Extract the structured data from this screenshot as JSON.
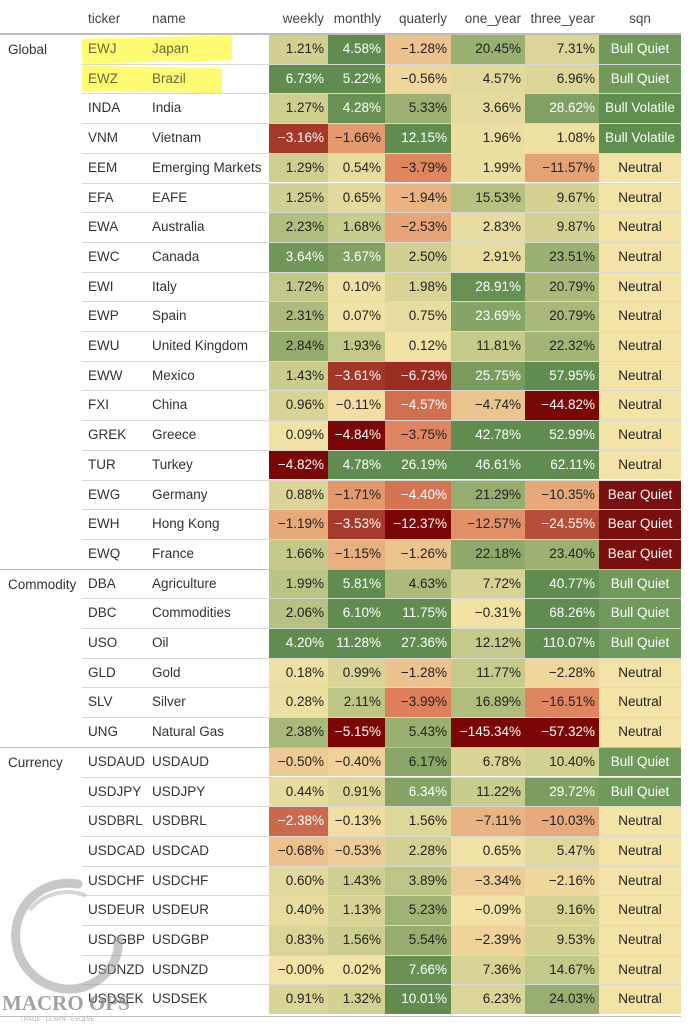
{
  "chart_data": {
    "type": "table",
    "columns": [
      {
        "key": "ticker",
        "label": "ticker"
      },
      {
        "key": "name",
        "label": "name"
      },
      {
        "key": "weekly",
        "label": "weekly"
      },
      {
        "key": "monthly",
        "label": "monthly"
      },
      {
        "key": "quaterly",
        "label": "quaterly"
      },
      {
        "key": "one_year",
        "label": "one_year"
      },
      {
        "key": "three_year",
        "label": "three_year"
      },
      {
        "key": "sqn",
        "label": "sqn"
      }
    ],
    "groups": [
      {
        "label": "Global",
        "rows": [
          {
            "ticker": "EWJ",
            "name": "Japan",
            "weekly": "1.21%",
            "monthly": "4.58%",
            "quaterly": "−1.28%",
            "one_year": "20.45%",
            "three_year": "7.31%",
            "sqn": "Bull Quiet",
            "highlighted": true
          },
          {
            "ticker": "EWZ",
            "name": "Brazil",
            "weekly": "6.73%",
            "monthly": "5.22%",
            "quaterly": "−0.56%",
            "one_year": "4.57%",
            "three_year": "6.96%",
            "sqn": "Bull Quiet",
            "highlighted": true
          },
          {
            "ticker": "INDA",
            "name": "India",
            "weekly": "1.27%",
            "monthly": "4.28%",
            "quaterly": "5.33%",
            "one_year": "3.66%",
            "three_year": "28.62%",
            "sqn": "Bull Volatile"
          },
          {
            "ticker": "VNM",
            "name": "Vietnam",
            "weekly": "−3.16%",
            "monthly": "−1.66%",
            "quaterly": "12.15%",
            "one_year": "1.96%",
            "three_year": "1.08%",
            "sqn": "Bull Volatile"
          },
          {
            "ticker": "EEM",
            "name": "Emerging Markets",
            "weekly": "1.29%",
            "monthly": "0.54%",
            "quaterly": "−3.79%",
            "one_year": "1.99%",
            "three_year": "−11.57%",
            "sqn": "Neutral"
          },
          {
            "ticker": "EFA",
            "name": "EAFE",
            "weekly": "1.25%",
            "monthly": "0.65%",
            "quaterly": "−1.94%",
            "one_year": "15.53%",
            "three_year": "9.67%",
            "sqn": "Neutral"
          },
          {
            "ticker": "EWA",
            "name": "Australia",
            "weekly": "2.23%",
            "monthly": "1.68%",
            "quaterly": "−2.53%",
            "one_year": "2.83%",
            "three_year": "9.87%",
            "sqn": "Neutral"
          },
          {
            "ticker": "EWC",
            "name": "Canada",
            "weekly": "3.64%",
            "monthly": "3.67%",
            "quaterly": "2.50%",
            "one_year": "2.91%",
            "three_year": "23.51%",
            "sqn": "Neutral"
          },
          {
            "ticker": "EWI",
            "name": "Italy",
            "weekly": "1.72%",
            "monthly": "0.10%",
            "quaterly": "1.98%",
            "one_year": "28.91%",
            "three_year": "20.79%",
            "sqn": "Neutral"
          },
          {
            "ticker": "EWP",
            "name": "Spain",
            "weekly": "2.31%",
            "monthly": "0.07%",
            "quaterly": "0.75%",
            "one_year": "23.69%",
            "three_year": "20.79%",
            "sqn": "Neutral"
          },
          {
            "ticker": "EWU",
            "name": "United Kingdom",
            "weekly": "2.84%",
            "monthly": "1.93%",
            "quaterly": "0.12%",
            "one_year": "11.81%",
            "three_year": "22.32%",
            "sqn": "Neutral"
          },
          {
            "ticker": "EWW",
            "name": "Mexico",
            "weekly": "1.43%",
            "monthly": "−3.61%",
            "quaterly": "−6.73%",
            "one_year": "25.75%",
            "three_year": "57.95%",
            "sqn": "Neutral"
          },
          {
            "ticker": "FXI",
            "name": "China",
            "weekly": "0.96%",
            "monthly": "−0.11%",
            "quaterly": "−4.57%",
            "one_year": "−4.74%",
            "three_year": "−44.82%",
            "sqn": "Neutral"
          },
          {
            "ticker": "GREK",
            "name": "Greece",
            "weekly": "0.09%",
            "monthly": "−4.84%",
            "quaterly": "−3.75%",
            "one_year": "42.78%",
            "three_year": "52.99%",
            "sqn": "Neutral"
          },
          {
            "ticker": "TUR",
            "name": "Turkey",
            "weekly": "−4.82%",
            "monthly": "4.78%",
            "quaterly": "26.19%",
            "one_year": "46.61%",
            "three_year": "62.11%",
            "sqn": "Neutral"
          },
          {
            "ticker": "EWG",
            "name": "Germany",
            "weekly": "0.88%",
            "monthly": "−1.71%",
            "quaterly": "−4.40%",
            "one_year": "21.29%",
            "three_year": "−10.35%",
            "sqn": "Bear Quiet"
          },
          {
            "ticker": "EWH",
            "name": "Hong Kong",
            "weekly": "−1.19%",
            "monthly": "−3.53%",
            "quaterly": "−12.37%",
            "one_year": "−12.57%",
            "three_year": "−24.55%",
            "sqn": "Bear Quiet"
          },
          {
            "ticker": "EWQ",
            "name": "France",
            "weekly": "1.66%",
            "monthly": "−1.15%",
            "quaterly": "−1.26%",
            "one_year": "22.18%",
            "three_year": "23.40%",
            "sqn": "Bear Quiet"
          }
        ]
      },
      {
        "label": "Commodity",
        "rows": [
          {
            "ticker": "DBA",
            "name": "Agriculture",
            "weekly": "1.99%",
            "monthly": "5.81%",
            "quaterly": "4.63%",
            "one_year": "7.72%",
            "three_year": "40.77%",
            "sqn": "Bull Quiet"
          },
          {
            "ticker": "DBC",
            "name": "Commodities",
            "weekly": "2.06%",
            "monthly": "6.10%",
            "quaterly": "11.75%",
            "one_year": "−0.31%",
            "three_year": "68.26%",
            "sqn": "Bull Quiet"
          },
          {
            "ticker": "USO",
            "name": "Oil",
            "weekly": "4.20%",
            "monthly": "11.28%",
            "quaterly": "27.36%",
            "one_year": "12.12%",
            "three_year": "110.07%",
            "sqn": "Bull Quiet"
          },
          {
            "ticker": "GLD",
            "name": "Gold",
            "weekly": "0.18%",
            "monthly": "0.99%",
            "quaterly": "−1.28%",
            "one_year": "11.77%",
            "three_year": "−2.28%",
            "sqn": "Neutral"
          },
          {
            "ticker": "SLV",
            "name": "Silver",
            "weekly": "0.28%",
            "monthly": "2.11%",
            "quaterly": "−3.99%",
            "one_year": "16.89%",
            "three_year": "−16.51%",
            "sqn": "Neutral"
          },
          {
            "ticker": "UNG",
            "name": "Natural Gas",
            "weekly": "2.38%",
            "monthly": "−5.15%",
            "quaterly": "5.43%",
            "one_year": "−145.34%",
            "three_year": "−57.32%",
            "sqn": "Neutral"
          }
        ]
      },
      {
        "label": "Currency",
        "rows": [
          {
            "ticker": "USDAUD",
            "name": "USDAUD",
            "weekly": "−0.50%",
            "monthly": "−0.40%",
            "quaterly": "6.17%",
            "one_year": "6.78%",
            "three_year": "10.40%",
            "sqn": "Bull Quiet"
          },
          {
            "ticker": "USDJPY",
            "name": "USDJPY",
            "weekly": "0.44%",
            "monthly": "0.91%",
            "quaterly": "6.34%",
            "one_year": "11.22%",
            "three_year": "29.72%",
            "sqn": "Bull Quiet"
          },
          {
            "ticker": "USDBRL",
            "name": "USDBRL",
            "weekly": "−2.38%",
            "monthly": "−0.13%",
            "quaterly": "1.56%",
            "one_year": "−7.11%",
            "three_year": "−10.03%",
            "sqn": "Neutral"
          },
          {
            "ticker": "USDCAD",
            "name": "USDCAD",
            "weekly": "−0.68%",
            "monthly": "−0.53%",
            "quaterly": "2.28%",
            "one_year": "0.65%",
            "three_year": "5.47%",
            "sqn": "Neutral"
          },
          {
            "ticker": "USDCHF",
            "name": "USDCHF",
            "weekly": "0.60%",
            "monthly": "1.43%",
            "quaterly": "3.89%",
            "one_year": "−3.34%",
            "three_year": "−2.16%",
            "sqn": "Neutral"
          },
          {
            "ticker": "USDEUR",
            "name": "USDEUR",
            "weekly": "0.40%",
            "monthly": "1.13%",
            "quaterly": "5.23%",
            "one_year": "−0.09%",
            "three_year": "9.16%",
            "sqn": "Neutral"
          },
          {
            "ticker": "USDGBP",
            "name": "USDGBP",
            "weekly": "0.83%",
            "monthly": "1.56%",
            "quaterly": "5.54%",
            "one_year": "−2.39%",
            "three_year": "9.53%",
            "sqn": "Neutral"
          },
          {
            "ticker": "USDNZD",
            "name": "USDNZD",
            "weekly": "−0.00%",
            "monthly": "0.02%",
            "quaterly": "7.66%",
            "one_year": "7.36%",
            "three_year": "14.67%",
            "sqn": "Neutral"
          },
          {
            "ticker": "USDSEK",
            "name": "USDSEK",
            "weekly": "0.91%",
            "monthly": "1.32%",
            "quaterly": "10.01%",
            "one_year": "6.23%",
            "three_year": "24.03%",
            "sqn": "Neutral"
          }
        ]
      }
    ]
  },
  "colors": {
    "sqn": {
      "Bull Quiet": "#6f9a5a",
      "Bull Volatile": "#5f8f4f",
      "Neutral": "#f3e3a6",
      "Bear Quiet": "#7a0f0f"
    }
  },
  "logo": {
    "text": "MACRO OPS",
    "tagline": "TRADE · LEARN · EVOLVE"
  }
}
